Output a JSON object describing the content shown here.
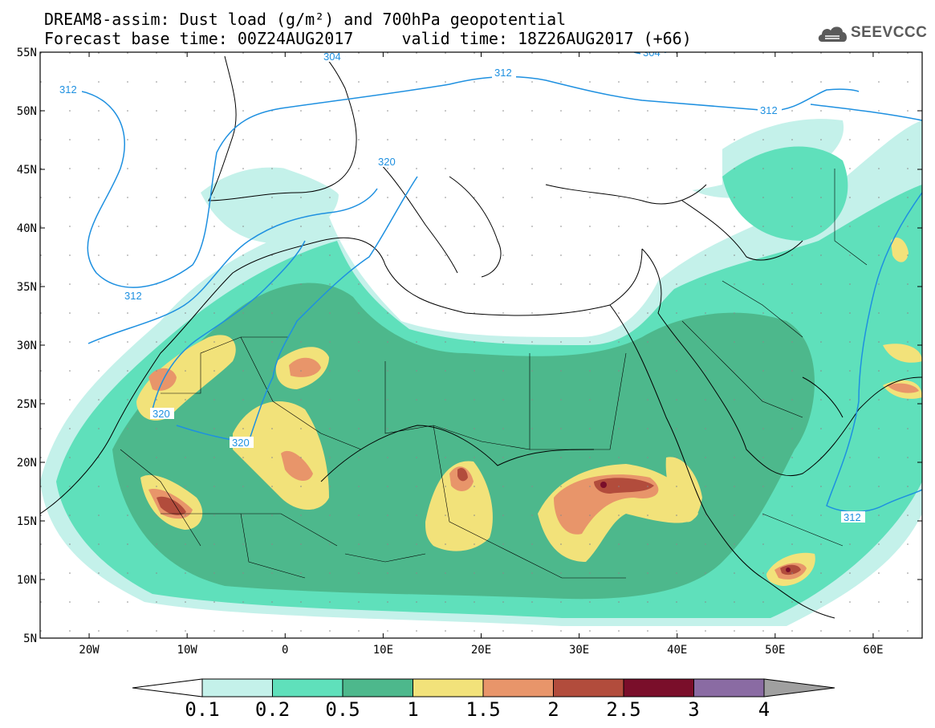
{
  "title": {
    "line1": "DREAM8-assim: Dust load (g/m²) and 700hPa geopotential",
    "line2": "Forecast base time: 00Z24AUG2017     valid time: 18Z26AUG2017 (+66)"
  },
  "logo": {
    "text": "SEEVCCC",
    "icon": "cloud-icon"
  },
  "axes": {
    "lat_labels": [
      "55N",
      "50N",
      "45N",
      "40N",
      "35N",
      "30N",
      "25N",
      "20N",
      "15N",
      "10N",
      "5N"
    ],
    "lon_labels": [
      "20W",
      "10W",
      "0",
      "10E",
      "20E",
      "30E",
      "40E",
      "50E",
      "60E"
    ],
    "lat_range": [
      5,
      55
    ],
    "lon_range": [
      -25,
      65
    ]
  },
  "contour_labels": [
    "304",
    "312",
    "312",
    "312",
    "312",
    "312",
    "320",
    "320",
    "320",
    "304"
  ],
  "colorbar": {
    "ticks": [
      "0.1",
      "0.2",
      "0.5",
      "1",
      "1.5",
      "2",
      "2.5",
      "3",
      "4"
    ],
    "colors": [
      "#c4f1ea",
      "#5fe0bb",
      "#4db88c",
      "#f2e27a",
      "#e8956a",
      "#b24c3c",
      "#7a0e2a",
      "#8a6ba3"
    ],
    "under_color": "#ffffff",
    "over_color": "#a0a0a0"
  },
  "colors": {
    "geopotential_contour": "#1e90e0",
    "coastline": "#000000"
  }
}
